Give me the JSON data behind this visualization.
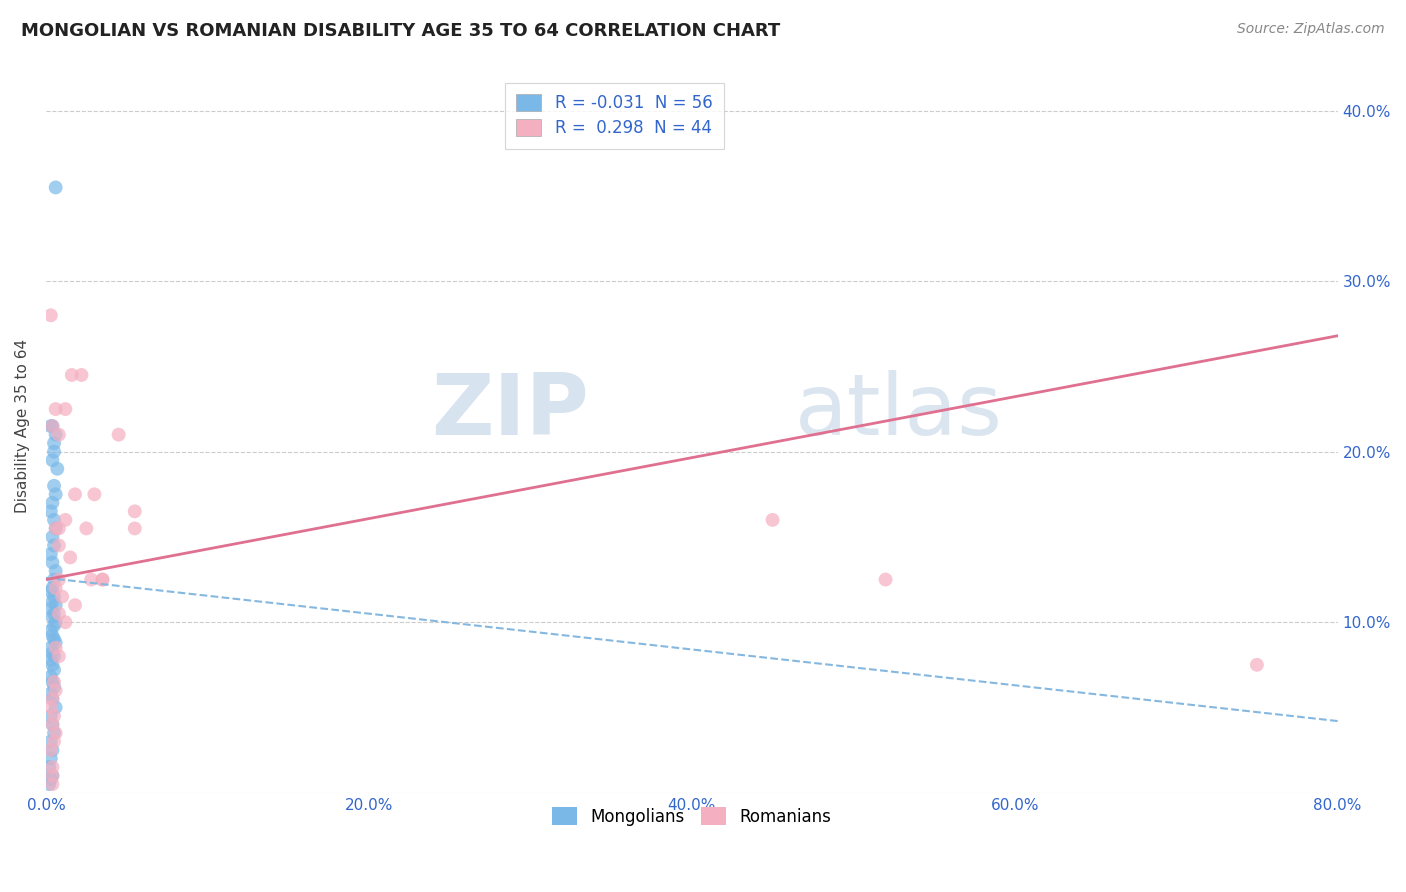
{
  "title": "MONGOLIAN VS ROMANIAN DISABILITY AGE 35 TO 64 CORRELATION CHART",
  "ylabel": "Disability Age 35 to 64",
  "source": "Source: ZipAtlas.com",
  "xlim": [
    0.0,
    0.8
  ],
  "ylim": [
    0.0,
    0.43
  ],
  "xticks": [
    0.0,
    0.2,
    0.4,
    0.6,
    0.8
  ],
  "yticks": [
    0.0,
    0.1,
    0.2,
    0.3,
    0.4
  ],
  "ytick_labels_right": [
    "",
    "10.0%",
    "20.0%",
    "30.0%",
    "40.0%"
  ],
  "xtick_labels": [
    "0.0%",
    "20.0%",
    "40.0%",
    "60.0%",
    "80.0%"
  ],
  "mongolian_R": -0.031,
  "mongolian_N": 56,
  "romanian_R": 0.298,
  "romanian_N": 44,
  "blue_color": "#7ab8e8",
  "pink_color": "#f4afc0",
  "blue_line_color": "#85b8e0",
  "pink_line_color": "#e07090",
  "watermark_zip": "ZIP",
  "watermark_atlas": "atlas",
  "blue_line_x0": 0.0,
  "blue_line_y0": 0.126,
  "blue_line_x1": 0.8,
  "blue_line_y1": 0.042,
  "pink_line_x0": 0.0,
  "pink_line_y0": 0.125,
  "pink_line_x1": 0.8,
  "pink_line_y1": 0.268,
  "mongolian_x": [
    0.006,
    0.005,
    0.004,
    0.003,
    0.007,
    0.006,
    0.005,
    0.004,
    0.006,
    0.005,
    0.004,
    0.003,
    0.005,
    0.006,
    0.004,
    0.005,
    0.003,
    0.004,
    0.006,
    0.005,
    0.004,
    0.003,
    0.005,
    0.004,
    0.006,
    0.003,
    0.005,
    0.004,
    0.006,
    0.005,
    0.003,
    0.004,
    0.005,
    0.006,
    0.003,
    0.004,
    0.005,
    0.003,
    0.004,
    0.005,
    0.003,
    0.004,
    0.005,
    0.003,
    0.004,
    0.006,
    0.003,
    0.004,
    0.005,
    0.003,
    0.004,
    0.003,
    0.002,
    0.004,
    0.003,
    0.002
  ],
  "mongolian_y": [
    0.355,
    0.205,
    0.215,
    0.215,
    0.19,
    0.21,
    0.2,
    0.195,
    0.175,
    0.18,
    0.17,
    0.165,
    0.16,
    0.155,
    0.15,
    0.145,
    0.14,
    0.135,
    0.13,
    0.125,
    0.12,
    0.118,
    0.115,
    0.112,
    0.11,
    0.108,
    0.105,
    0.103,
    0.1,
    0.098,
    0.095,
    0.092,
    0.09,
    0.088,
    0.085,
    0.082,
    0.08,
    0.078,
    0.075,
    0.072,
    0.068,
    0.065,
    0.062,
    0.058,
    0.055,
    0.05,
    0.045,
    0.04,
    0.035,
    0.03,
    0.025,
    0.02,
    0.015,
    0.01,
    0.008,
    0.005
  ],
  "romanian_x": [
    0.006,
    0.004,
    0.016,
    0.012,
    0.008,
    0.022,
    0.03,
    0.018,
    0.045,
    0.055,
    0.012,
    0.025,
    0.035,
    0.008,
    0.015,
    0.028,
    0.006,
    0.01,
    0.018,
    0.008,
    0.012,
    0.006,
    0.008,
    0.055,
    0.035,
    0.006,
    0.008,
    0.008,
    0.005,
    0.006,
    0.004,
    0.003,
    0.005,
    0.004,
    0.006,
    0.005,
    0.003,
    0.004,
    0.45,
    0.52,
    0.003,
    0.004,
    0.75,
    0.004
  ],
  "romanian_y": [
    0.225,
    0.215,
    0.245,
    0.225,
    0.21,
    0.245,
    0.175,
    0.175,
    0.21,
    0.165,
    0.16,
    0.155,
    0.125,
    0.145,
    0.138,
    0.125,
    0.12,
    0.115,
    0.11,
    0.105,
    0.1,
    0.155,
    0.155,
    0.155,
    0.125,
    0.085,
    0.08,
    0.125,
    0.065,
    0.06,
    0.055,
    0.05,
    0.045,
    0.04,
    0.035,
    0.03,
    0.025,
    0.015,
    0.16,
    0.125,
    0.28,
    0.005,
    0.075,
    0.01
  ]
}
